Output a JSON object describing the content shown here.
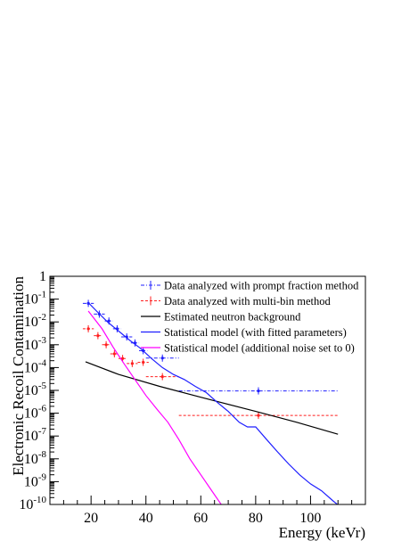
{
  "chart_data": {
    "type": "scatter",
    "title": "",
    "xlabel": "Energy (keVr)",
    "ylabel": "Electronic Recoil Contamination",
    "xlim": [
      5,
      120
    ],
    "ylim_log10": [
      -10,
      0
    ],
    "yscale": "log",
    "x_ticks": [
      20,
      40,
      60,
      80,
      100
    ],
    "y_ticks": [
      {
        "exp": 0,
        "label": "1"
      },
      {
        "exp": -1,
        "label": "10",
        "sup": "-1"
      },
      {
        "exp": -2,
        "label": "10",
        "sup": "-2"
      },
      {
        "exp": -3,
        "label": "10",
        "sup": "-3"
      },
      {
        "exp": -4,
        "label": "10",
        "sup": "-4"
      },
      {
        "exp": -5,
        "label": "10",
        "sup": "-5"
      },
      {
        "exp": -6,
        "label": "10",
        "sup": "-6"
      },
      {
        "exp": -7,
        "label": "10",
        "sup": "-7"
      },
      {
        "exp": -8,
        "label": "10",
        "sup": "-8"
      },
      {
        "exp": -9,
        "label": "10",
        "sup": "-9"
      },
      {
        "exp": -10,
        "label": "10",
        "sup": "-10"
      }
    ],
    "legend_position": "top-right",
    "series": [
      {
        "name": "Data analyzed with prompt fraction method",
        "kind": "errorbar",
        "color": "#1f1fff",
        "dash": "4,2,1,2",
        "points": [
          {
            "x": 19,
            "xerr": 2,
            "y": 0.065
          },
          {
            "x": 23,
            "xerr": 2,
            "y": 0.022
          },
          {
            "x": 26.5,
            "xerr": 1.5,
            "y": 0.011
          },
          {
            "x": 29.5,
            "xerr": 1.5,
            "y": 0.005
          },
          {
            "x": 33,
            "xerr": 2,
            "y": 0.0022
          },
          {
            "x": 36,
            "xerr": 1.5,
            "y": 0.0012
          },
          {
            "x": 39,
            "xerr": 1.5,
            "y": 0.00055
          },
          {
            "x": 46,
            "xerr": 6,
            "y": 0.00026
          },
          {
            "x": 81,
            "xerr": 29,
            "y": 9.5e-06
          }
        ]
      },
      {
        "name": "Data analyzed with multi-bin method",
        "kind": "errorbar",
        "color": "#ff1f1f",
        "dash": "3,2",
        "points": [
          {
            "x": 19,
            "xerr": 2,
            "y": 0.005
          },
          {
            "x": 22.5,
            "xerr": 1.5,
            "y": 0.0025
          },
          {
            "x": 25.5,
            "xerr": 1.5,
            "y": 0.001
          },
          {
            "x": 28.5,
            "xerr": 1.5,
            "y": 0.0004
          },
          {
            "x": 31.5,
            "xerr": 1.5,
            "y": 0.00025
          },
          {
            "x": 35,
            "xerr": 2,
            "y": 0.00015
          },
          {
            "x": 39,
            "xerr": 2,
            "y": 0.00017
          },
          {
            "x": 46,
            "xerr": 6,
            "y": 4e-05
          },
          {
            "x": 81,
            "xerr": 29,
            "y": 8e-07
          }
        ]
      },
      {
        "name": "Estimated neutron background",
        "kind": "line",
        "color": "#000000",
        "points": [
          [
            18,
            0.00018
          ],
          [
            30,
            5e-05
          ],
          [
            45,
            1.5e-05
          ],
          [
            60,
            5e-06
          ],
          [
            80,
            1.2e-06
          ],
          [
            95,
            4e-07
          ],
          [
            110,
            1.2e-07
          ]
        ]
      },
      {
        "name": "Statistical model (with fitted parameters)",
        "kind": "line",
        "color": "#1f1fff",
        "points": [
          [
            19,
            0.07
          ],
          [
            22,
            0.03
          ],
          [
            26,
            0.01
          ],
          [
            30,
            0.004
          ],
          [
            34,
            0.0016
          ],
          [
            38,
            0.0007
          ],
          [
            42,
            0.00025
          ],
          [
            46,
            0.0001
          ],
          [
            50,
            5e-05
          ],
          [
            54,
            3e-05
          ],
          [
            58,
            1.5e-05
          ],
          [
            62,
            8e-06
          ],
          [
            66,
            3e-06
          ],
          [
            70,
            1.2e-06
          ],
          [
            74,
            4e-07
          ],
          [
            77,
            2.5e-07
          ],
          [
            80,
            2.5e-07
          ],
          [
            84,
            7e-08
          ],
          [
            88,
            2e-08
          ],
          [
            92,
            6e-09
          ],
          [
            96,
            2e-09
          ],
          [
            100,
            8e-10
          ],
          [
            104,
            4e-10
          ],
          [
            108,
            1.5e-10
          ],
          [
            112,
            6e-11
          ],
          [
            115,
            2e-11
          ],
          [
            119,
            1.5e-11
          ]
        ]
      },
      {
        "name": "Statistical model (additional noise set to 0)",
        "kind": "line",
        "color": "#ff00ff",
        "points": [
          [
            19,
            0.03
          ],
          [
            24,
            0.005
          ],
          [
            28,
            0.0008
          ],
          [
            32,
            0.00015
          ],
          [
            36,
            3e-05
          ],
          [
            40,
            6e-06
          ],
          [
            44,
            1.5e-06
          ],
          [
            48,
            4e-07
          ],
          [
            52,
            7e-08
          ],
          [
            56,
            1e-08
          ],
          [
            60,
            2e-09
          ],
          [
            64,
            4e-10
          ],
          [
            68,
            8e-11
          ],
          [
            70,
            4e-11
          ]
        ]
      }
    ]
  }
}
